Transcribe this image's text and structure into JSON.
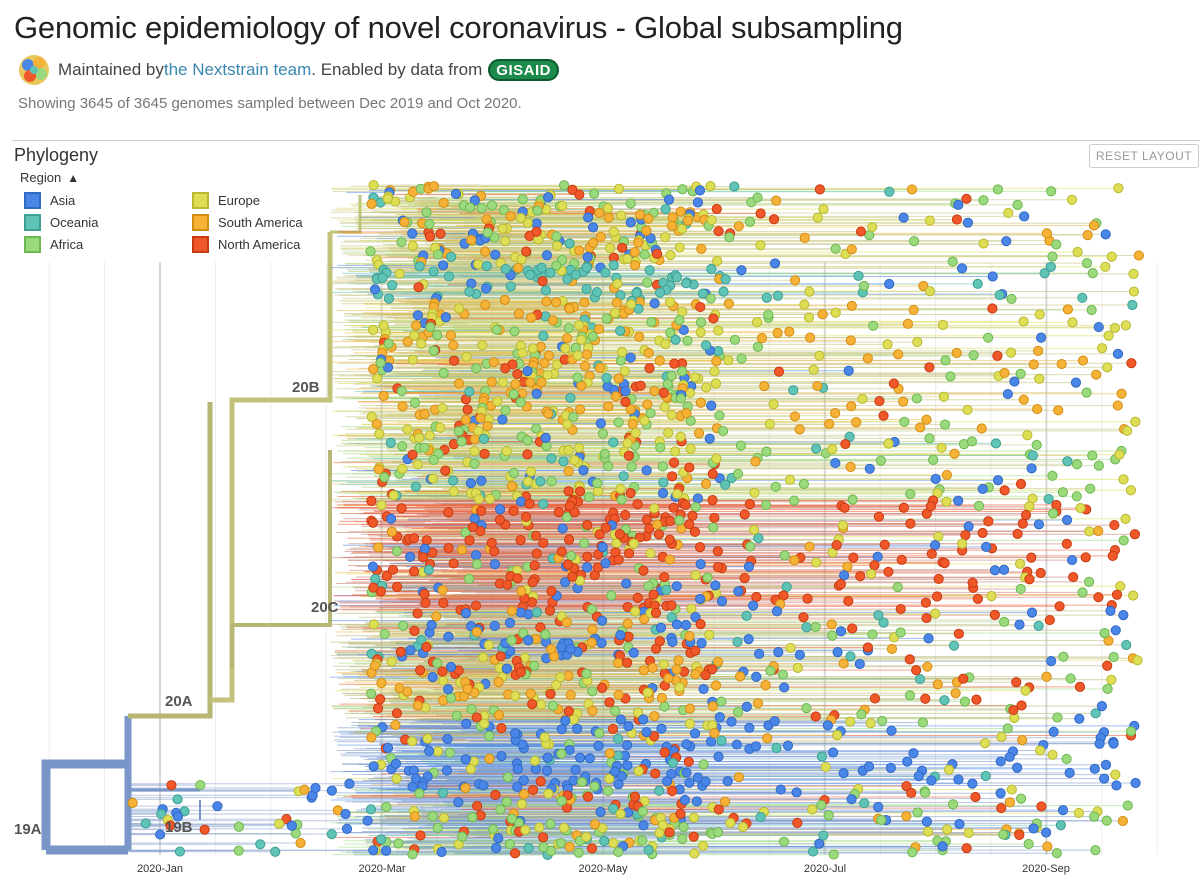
{
  "header": {
    "title": "Genomic epidemiology of novel coronavirus - Global subsampling",
    "maintained_prefix": "Maintained by ",
    "team_link": "the Nextstrain team",
    "enabled_text": ". Enabled by data from",
    "gisaid_label": "GISAID",
    "summary": "Showing 3645 of 3645 genomes sampled between Dec 2019 and Oct 2020."
  },
  "panel": {
    "title": "Phylogeny",
    "reset_label": "RESET LAYOUT"
  },
  "legend": {
    "title": "Region",
    "caret": "▲",
    "items": [
      {
        "label": "Asia",
        "color": "#4a86e8",
        "border": "#3269c2"
      },
      {
        "label": "Oceania",
        "color": "#5fc3b5",
        "border": "#3f9f92"
      },
      {
        "label": "Africa",
        "color": "#9ad97c",
        "border": "#6fb752"
      },
      {
        "label": "Europe",
        "color": "#dede55",
        "border": "#b8b834"
      },
      {
        "label": "South America",
        "color": "#f6b237",
        "border": "#d28d15"
      },
      {
        "label": "North America",
        "color": "#f0582a",
        "border": "#c63c12"
      }
    ]
  },
  "clades": [
    "19A",
    "19B",
    "20A",
    "20B",
    "20C"
  ],
  "axis": {
    "ticks": [
      "2020-Jan",
      "2020-Mar",
      "2020-May",
      "2020-Jul",
      "2020-Sep"
    ]
  },
  "branch_colors": {
    "root": "#7a96c8",
    "c20a": "#b8b674",
    "c20b": "#c2c27a",
    "c20c": "#c97c6e"
  }
}
